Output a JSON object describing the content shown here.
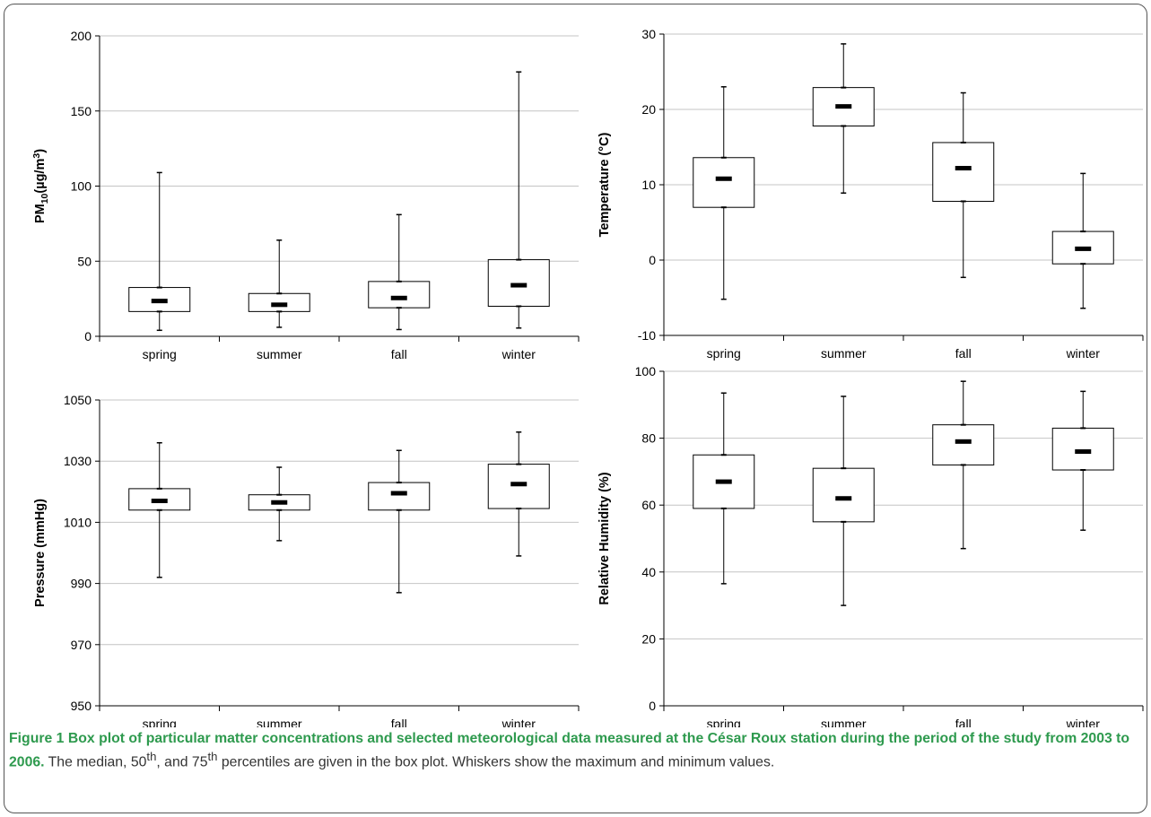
{
  "chart_data": [
    {
      "type": "box",
      "ylabel_main": "PM",
      "ylabel_sub": "10",
      "ylabel_rest": "(µg/m",
      "ylabel_sup": "3",
      "ylabel_end": ")",
      "ylim": [
        0,
        200
      ],
      "yticks": [
        0,
        50,
        100,
        150,
        200
      ],
      "grid": true,
      "categories": [
        "spring",
        "summer",
        "fall",
        "winter"
      ],
      "series": [
        {
          "min": 4,
          "q1": 16.5,
          "median": 23.5,
          "q3": 32.5,
          "max": 109
        },
        {
          "min": 6,
          "q1": 16.5,
          "median": 21,
          "q3": 28.5,
          "max": 64
        },
        {
          "min": 4.5,
          "q1": 19,
          "median": 25.5,
          "q3": 36.5,
          "max": 81
        },
        {
          "min": 5.5,
          "q1": 20,
          "median": 34,
          "q3": 51,
          "max": 176
        }
      ]
    },
    {
      "type": "box",
      "ylabel": "Temperature (°C)",
      "ylim": [
        -10,
        30
      ],
      "yticks": [
        -10,
        0,
        10,
        20,
        30
      ],
      "grid": true,
      "categories": [
        "spring",
        "summer",
        "fall",
        "winter"
      ],
      "series": [
        {
          "min": -5.2,
          "q1": 7,
          "median": 10.8,
          "q3": 13.6,
          "max": 23
        },
        {
          "min": 8.9,
          "q1": 17.8,
          "median": 20.4,
          "q3": 22.9,
          "max": 28.7
        },
        {
          "min": -2.3,
          "q1": 7.8,
          "median": 12.2,
          "q3": 15.6,
          "max": 22.2
        },
        {
          "min": -6.4,
          "q1": -0.5,
          "median": 1.5,
          "q3": 3.8,
          "max": 11.5
        }
      ]
    },
    {
      "type": "box",
      "ylabel": "Pressure (mmHg)",
      "ylim": [
        950,
        1050
      ],
      "yticks": [
        950,
        970,
        990,
        1010,
        1030,
        1050
      ],
      "grid": true,
      "categories": [
        "spring",
        "summer",
        "fall",
        "winter"
      ],
      "series": [
        {
          "min": 992,
          "q1": 1014,
          "median": 1017,
          "q3": 1021,
          "max": 1036
        },
        {
          "min": 1004,
          "q1": 1014,
          "median": 1016.5,
          "q3": 1019,
          "max": 1028
        },
        {
          "min": 987,
          "q1": 1014,
          "median": 1019.5,
          "q3": 1023,
          "max": 1033.5
        },
        {
          "min": 999,
          "q1": 1014.5,
          "median": 1022.5,
          "q3": 1029,
          "max": 1039.5
        }
      ]
    },
    {
      "type": "box",
      "ylabel": "Relative Humidity (%)",
      "ylim": [
        0,
        100
      ],
      "yticks": [
        0,
        20,
        40,
        60,
        80,
        100
      ],
      "grid": true,
      "categories": [
        "spring",
        "summer",
        "fall",
        "winter"
      ],
      "series": [
        {
          "min": 36.5,
          "q1": 59,
          "median": 67,
          "q3": 75,
          "max": 93.5
        },
        {
          "min": 30,
          "q1": 55,
          "median": 62,
          "q3": 71,
          "max": 92.5
        },
        {
          "min": 47,
          "q1": 72,
          "median": 79,
          "q3": 84,
          "max": 97
        },
        {
          "min": 52.5,
          "q1": 70.5,
          "median": 76,
          "q3": 83,
          "max": 94
        }
      ]
    }
  ],
  "caption": {
    "label": "Figure 1",
    "title": "Box plot of particular matter concentrations and selected meteorological data measured at the César Roux station during the period of the study from 2003 to 2006.",
    "body_1": "The median, 50",
    "sup_1": "th",
    "body_2": ", and 75",
    "sup_2": "th",
    "body_3": " percentiles are given in the box plot. Whiskers show the maximum and minimum values."
  }
}
